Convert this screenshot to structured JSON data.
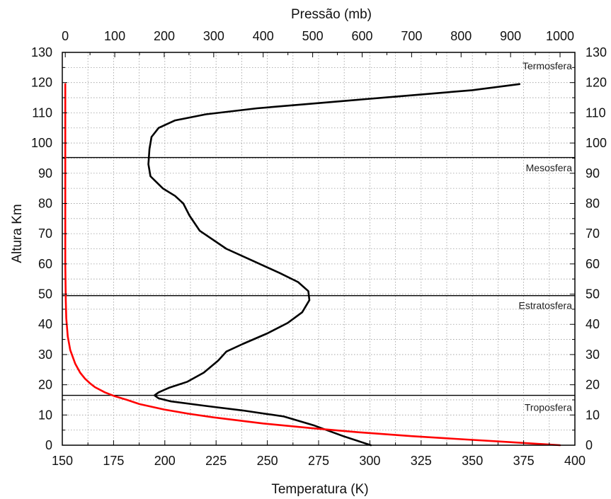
{
  "chart_data": {
    "type": "line",
    "top_axis_label": "Pressão (mb)",
    "bottom_axis_label": "Temperatura (K)",
    "left_axis_label": "Altura Km",
    "temperature_axis": {
      "range": [
        150,
        400
      ],
      "ticks": [
        150,
        175,
        200,
        225,
        250,
        275,
        300,
        325,
        350,
        375,
        400
      ]
    },
    "pressure_axis": {
      "range": [
        -6,
        1030
      ],
      "ticks": [
        0,
        100,
        200,
        300,
        400,
        500,
        600,
        700,
        800,
        900,
        1000
      ]
    },
    "altitude_axis": {
      "range": [
        0,
        130
      ],
      "ticks": [
        0,
        10,
        20,
        30,
        40,
        50,
        60,
        70,
        80,
        90,
        100,
        110,
        120,
        130
      ]
    },
    "grid": true,
    "layer_boundaries": [
      16.5,
      49.5,
      95.2
    ],
    "layers": [
      {
        "name": "Troposfera",
        "altitude": 12.5
      },
      {
        "name": "Estratosfera",
        "altitude": 46.3
      },
      {
        "name": "Mesosfera",
        "altitude": 91.8
      },
      {
        "name": "Termosfera",
        "altitude": 125.5
      }
    ],
    "series": [
      {
        "quantity": "temperature",
        "color": "#000000",
        "points": [
          [
            300.5,
            0
          ],
          [
            287,
            3
          ],
          [
            273,
            6.5
          ],
          [
            258,
            9.5
          ],
          [
            238,
            11.5
          ],
          [
            220,
            13
          ],
          [
            203,
            14.5
          ],
          [
            197,
            15.5
          ],
          [
            195,
            16.5
          ],
          [
            197,
            17.5
          ],
          [
            202,
            19
          ],
          [
            211,
            21
          ],
          [
            219,
            24
          ],
          [
            226,
            28
          ],
          [
            230,
            31
          ],
          [
            238,
            33.5
          ],
          [
            250,
            37
          ],
          [
            260,
            40.5
          ],
          [
            267,
            44
          ],
          [
            270.5,
            48
          ],
          [
            270,
            51
          ],
          [
            265,
            54
          ],
          [
            256,
            57
          ],
          [
            243,
            61
          ],
          [
            230,
            65
          ],
          [
            217,
            71
          ],
          [
            212,
            76
          ],
          [
            209,
            80
          ],
          [
            205,
            82.5
          ],
          [
            199,
            85
          ],
          [
            193,
            89
          ],
          [
            192,
            93
          ],
          [
            192.5,
            98
          ],
          [
            193.5,
            102
          ],
          [
            197,
            105
          ],
          [
            205,
            107.5
          ],
          [
            220,
            109.5
          ],
          [
            245,
            111.5
          ],
          [
            280,
            113.5
          ],
          [
            315,
            115.5
          ],
          [
            350,
            117.5
          ],
          [
            373,
            119.5
          ]
        ]
      },
      {
        "quantity": "pressure",
        "color": "#ff0000",
        "points": [
          [
            1000,
            0
          ],
          [
            900,
            1
          ],
          [
            800,
            2
          ],
          [
            700,
            3
          ],
          [
            600,
            4.2
          ],
          [
            500,
            5.6
          ],
          [
            400,
            7.2
          ],
          [
            300,
            9.2
          ],
          [
            250,
            10.4
          ],
          [
            200,
            11.8
          ],
          [
            150,
            13.6
          ],
          [
            125,
            15
          ],
          [
            100,
            16.2
          ],
          [
            80,
            17.5
          ],
          [
            60,
            19.2
          ],
          [
            50,
            20.5
          ],
          [
            40,
            22
          ],
          [
            30,
            24
          ],
          [
            20,
            27
          ],
          [
            10,
            31.5
          ],
          [
            5,
            36
          ],
          [
            2,
            42
          ],
          [
            1,
            48
          ],
          [
            0.5,
            55
          ],
          [
            0,
            60
          ],
          [
            0,
            119.5
          ]
        ]
      }
    ]
  }
}
